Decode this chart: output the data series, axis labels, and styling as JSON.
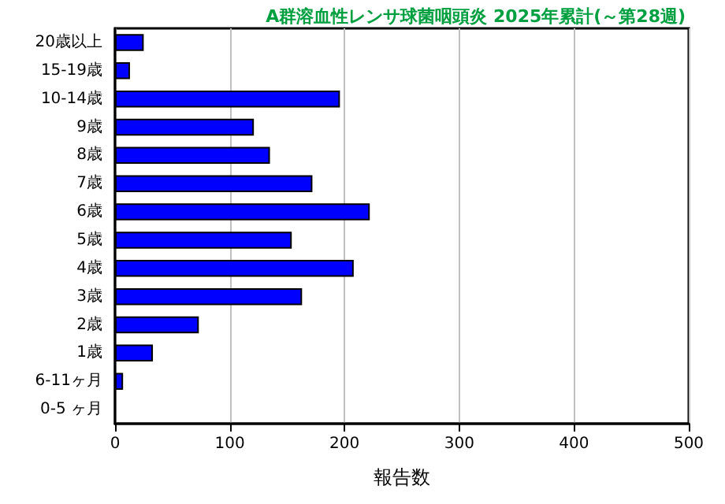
{
  "chart_data": {
    "type": "bar",
    "orientation": "horizontal",
    "title": "A群溶血性レンサ球菌咽頭炎 2025年累計(～第28週)",
    "xlabel": "報告数",
    "categories": [
      "20歳以上",
      "15-19歳",
      "10-14歳",
      "9歳",
      "8歳",
      "7歳",
      "6歳",
      "5歳",
      "4歳",
      "3歳",
      "2歳",
      "1歳",
      "6-11ヶ月",
      "0-5 ヶ月"
    ],
    "values": [
      25,
      13,
      196,
      121,
      135,
      172,
      222,
      154,
      208,
      163,
      73,
      33,
      7,
      0
    ],
    "color": "#0000ff",
    "xlim": [
      0,
      500
    ],
    "xticks": [
      0,
      100,
      200,
      300,
      400,
      500
    ],
    "grid": "x"
  }
}
